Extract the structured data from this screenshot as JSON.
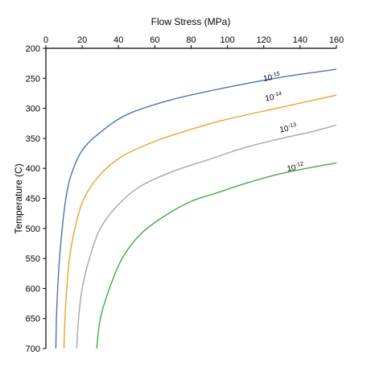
{
  "chart_data": {
    "type": "line",
    "title": "",
    "xlabel": "Flow Stress (MPa)",
    "ylabel": "Temperature (C)",
    "xlim": [
      0,
      160
    ],
    "ylim": [
      200,
      700
    ],
    "x_axis_position": "top",
    "y_axis_inverted": true,
    "grid": false,
    "x_ticks": [
      0,
      20,
      40,
      60,
      80,
      100,
      120,
      140,
      160
    ],
    "y_ticks": [
      200,
      250,
      300,
      350,
      400,
      450,
      500,
      550,
      600,
      650,
      700
    ],
    "series": [
      {
        "name": "10-15",
        "label_base": "10",
        "label_exp": "-15",
        "color": "#4a73b3",
        "points": [
          [
            5.5,
            700
          ],
          [
            5.8,
            650
          ],
          [
            6.5,
            600
          ],
          [
            7.5,
            550
          ],
          [
            9,
            500
          ],
          [
            11,
            450
          ],
          [
            14,
            410
          ],
          [
            20,
            370
          ],
          [
            30,
            340
          ],
          [
            45,
            310
          ],
          [
            70,
            285
          ],
          [
            100,
            265
          ],
          [
            130,
            248
          ],
          [
            160,
            235
          ]
        ]
      },
      {
        "name": "10-14",
        "label_base": "10",
        "label_exp": "-14",
        "color": "#f0a030",
        "points": [
          [
            10,
            700
          ],
          [
            10.5,
            650
          ],
          [
            11.5,
            600
          ],
          [
            13,
            550
          ],
          [
            16,
            500
          ],
          [
            21,
            450
          ],
          [
            30,
            410
          ],
          [
            42,
            380
          ],
          [
            60,
            355
          ],
          [
            80,
            335
          ],
          [
            100,
            318
          ],
          [
            130,
            298
          ],
          [
            160,
            278
          ]
        ]
      },
      {
        "name": "10-13",
        "label_base": "10",
        "label_exp": "-13",
        "color": "#a6a6a6",
        "points": [
          [
            17,
            700
          ],
          [
            18,
            650
          ],
          [
            20,
            600
          ],
          [
            24,
            550
          ],
          [
            30,
            500
          ],
          [
            40,
            460
          ],
          [
            52,
            430
          ],
          [
            70,
            405
          ],
          [
            90,
            385
          ],
          [
            110,
            365
          ],
          [
            130,
            350
          ],
          [
            145,
            340
          ],
          [
            160,
            328
          ]
        ]
      },
      {
        "name": "10-12",
        "label_base": "10",
        "label_exp": "-12",
        "color": "#3fae45",
        "points": [
          [
            28,
            700
          ],
          [
            30,
            650
          ],
          [
            35,
            600
          ],
          [
            42,
            550
          ],
          [
            52,
            510
          ],
          [
            65,
            480
          ],
          [
            80,
            455
          ],
          [
            95,
            440
          ],
          [
            110,
            425
          ],
          [
            125,
            412
          ],
          [
            140,
            402
          ],
          [
            160,
            391
          ]
        ]
      }
    ],
    "curve_labels": [
      {
        "series": 0,
        "x": 120,
        "y": 255
      },
      {
        "series": 1,
        "x": 121,
        "y": 288
      },
      {
        "series": 2,
        "x": 129,
        "y": 340
      },
      {
        "series": 3,
        "x": 133,
        "y": 405
      }
    ]
  }
}
